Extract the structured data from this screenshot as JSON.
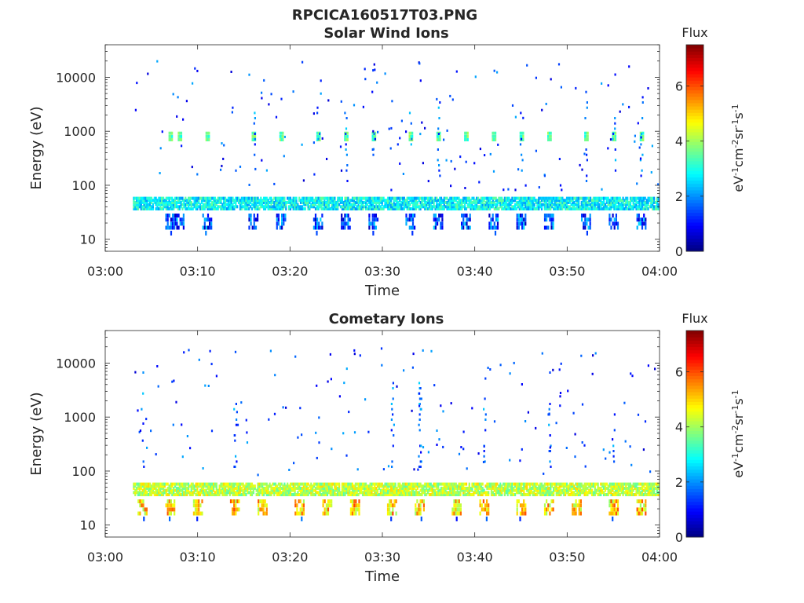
{
  "figure": {
    "filename_title": "RPCICA160517T03.PNG"
  },
  "colors": {
    "background": "#ffffff",
    "axis": "#262626",
    "colormap": "jet"
  },
  "chart_data": [
    {
      "type": "heatmap",
      "title": "Solar Wind Ions",
      "xlabel": "Time",
      "ylabel": "Energy (eV)",
      "x_ticks": [
        "03:00",
        "03:10",
        "03:20",
        "03:30",
        "03:40",
        "03:50",
        "04:00"
      ],
      "xlim": [
        "03:00",
        "04:00"
      ],
      "y_scale": "log",
      "y_ticks": [
        "10",
        "100",
        "1000",
        "10000"
      ],
      "ylim": [
        6,
        40000
      ],
      "colorbar": {
        "label": "Flux",
        "units": "eV-1cm-2sr-1s-1",
        "range": [
          0,
          7.5
        ],
        "ticks": [
          "0",
          "2",
          "4",
          "6"
        ]
      },
      "features": {
        "data_start": "03:03",
        "low_energy_band_eV": [
          35,
          60
        ],
        "low_band_flux": 2.8,
        "sub_band_eV": [
          15,
          30
        ],
        "sub_band_flux": 1.5,
        "mid_peak_eV": 800,
        "mid_peak_flux": 3.5,
        "mid_peak_times": [
          "03:07",
          "03:08",
          "03:11",
          "03:16",
          "03:19",
          "03:23",
          "03:26",
          "03:29",
          "03:33",
          "03:36",
          "03:39",
          "03:42",
          "03:45",
          "03:48",
          "03:52",
          "03:55",
          "03:58"
        ]
      }
    },
    {
      "type": "heatmap",
      "title": "Cometary Ions",
      "xlabel": "Time",
      "ylabel": "Energy (eV)",
      "x_ticks": [
        "03:00",
        "03:10",
        "03:20",
        "03:30",
        "03:40",
        "03:50",
        "04:00"
      ],
      "xlim": [
        "03:00",
        "04:00"
      ],
      "y_scale": "log",
      "y_ticks": [
        "10",
        "100",
        "1000",
        "10000"
      ],
      "ylim": [
        6,
        40000
      ],
      "colorbar": {
        "label": "Flux",
        "units": "eV-1cm-2sr-1s-1",
        "range": [
          0,
          7.5
        ],
        "ticks": [
          "0",
          "2",
          "4",
          "6"
        ]
      },
      "features": {
        "data_start": "03:03",
        "low_energy_band_eV": [
          35,
          60
        ],
        "low_band_flux": 4.2,
        "sub_band_eV": [
          15,
          30
        ],
        "sub_band_flux": 5.0,
        "burst_times": [
          "03:04",
          "03:07",
          "03:10",
          "03:14",
          "03:17",
          "03:21",
          "03:24",
          "03:27",
          "03:31",
          "03:34",
          "03:38",
          "03:41",
          "03:45",
          "03:48",
          "03:51",
          "03:55",
          "03:58"
        ]
      }
    }
  ]
}
